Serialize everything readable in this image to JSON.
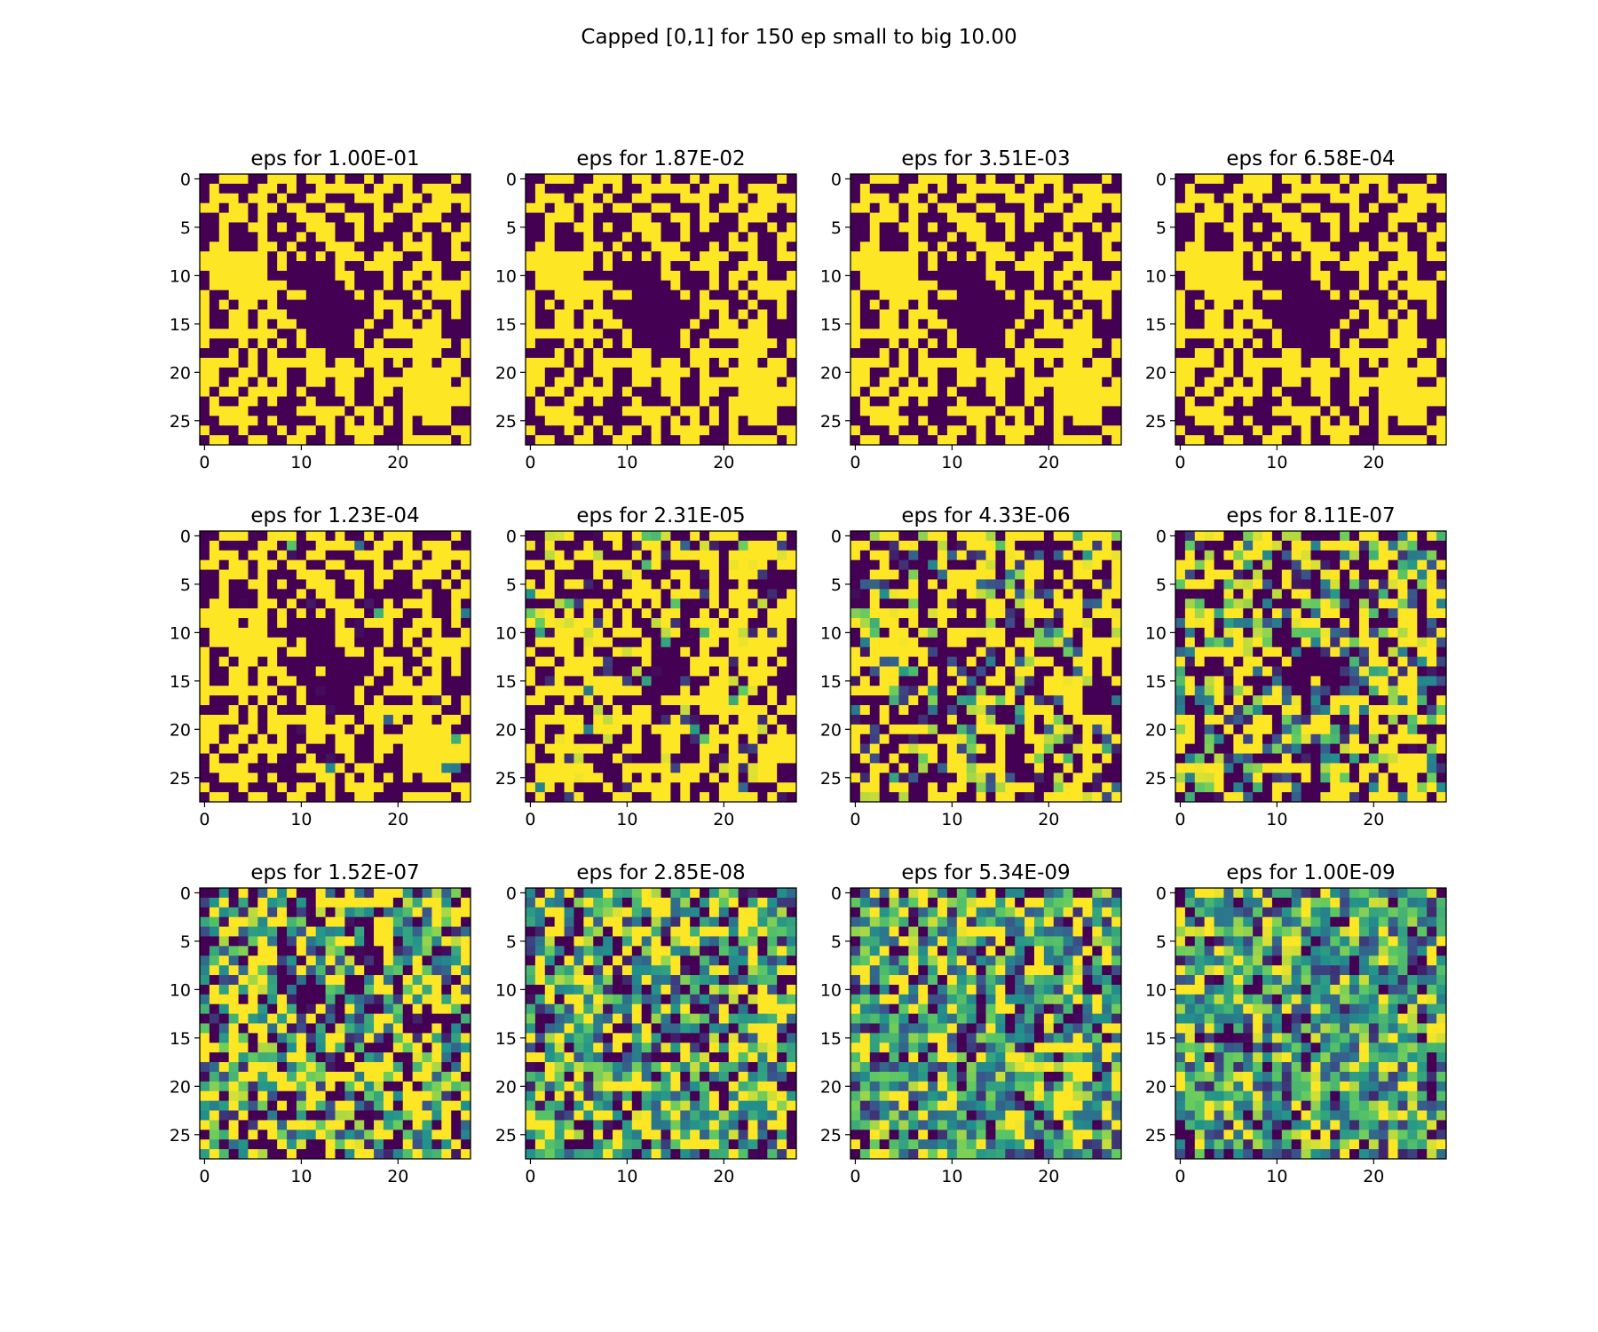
{
  "figure": {
    "title": "Capped [0,1] for 150 ep small to big 10.00"
  },
  "chart_data": {
    "type": "heatmap",
    "colormap": [
      "#440154",
      "#3b528b",
      "#21918c",
      "#5ec962",
      "#fde725"
    ],
    "value_range": [
      0,
      1
    ],
    "grid_size": [
      28,
      28
    ],
    "x_ticks": [
      0,
      10,
      20
    ],
    "y_ticks": [
      0,
      5,
      10,
      15,
      20,
      25
    ],
    "x_tick_labels": [
      "0",
      "10",
      "20"
    ],
    "y_tick_labels": [
      "0",
      "5",
      "10",
      "15",
      "20",
      "25"
    ],
    "panels": [
      {
        "title": "eps for 1.00E-01",
        "eps": 0.1
      },
      {
        "title": "eps for 1.87E-02",
        "eps": 0.0187
      },
      {
        "title": "eps for 3.51E-03",
        "eps": 0.00351
      },
      {
        "title": "eps for 6.58E-04",
        "eps": 0.000658
      },
      {
        "title": "eps for 1.23E-04",
        "eps": 0.000123
      },
      {
        "title": "eps for 2.31E-05",
        "eps": 2.31e-05
      },
      {
        "title": "eps for 4.33E-06",
        "eps": 4.33e-06
      },
      {
        "title": "eps for 8.11E-07",
        "eps": 8.11e-07
      },
      {
        "title": "eps for 1.52E-07",
        "eps": 1.52e-07
      },
      {
        "title": "eps for 2.85E-08",
        "eps": 2.85e-08
      },
      {
        "title": "eps for 5.34E-09",
        "eps": 5.34e-09
      },
      {
        "title": "eps for 1.00E-09",
        "eps": 1e-09
      }
    ]
  }
}
